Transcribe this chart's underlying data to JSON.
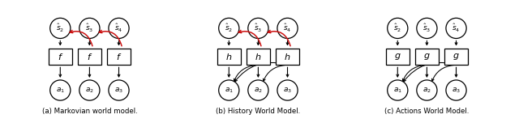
{
  "bg_color": "#ffffff",
  "panels": [
    {
      "label": "(a) Markovian world model.",
      "func_label": "f",
      "node_label": [
        "\\hat{s}_2",
        "\\hat{s}_3",
        "\\hat{s}_4"
      ],
      "action_label": [
        "a_1",
        "a_2",
        "a_3"
      ],
      "red_arrows": [
        [
          1,
          0
        ],
        [
          2,
          1
        ]
      ],
      "black_curved_arrows": []
    },
    {
      "label": "(b) History World Model.",
      "func_label": "h",
      "node_label": [
        "\\hat{s}_2",
        "\\hat{s}_3",
        "\\hat{s}_4"
      ],
      "action_label": [
        "a_1",
        "a_2",
        "a_3"
      ],
      "red_arrows": [
        [
          1,
          0
        ],
        [
          2,
          1
        ]
      ],
      "black_curved_arrows": [
        [
          1,
          0
        ],
        [
          2,
          0
        ],
        [
          2,
          1
        ]
      ]
    },
    {
      "label": "(c) Actions World Model.",
      "func_label": "g",
      "node_label": [
        "\\hat{s}_2",
        "\\hat{s}_3",
        "\\hat{s}_4"
      ],
      "action_label": [
        "a_1",
        "a_2",
        "a_3"
      ],
      "red_arrows": [],
      "black_curved_arrows": [
        [
          1,
          0
        ],
        [
          2,
          0
        ],
        [
          2,
          1
        ]
      ]
    }
  ]
}
